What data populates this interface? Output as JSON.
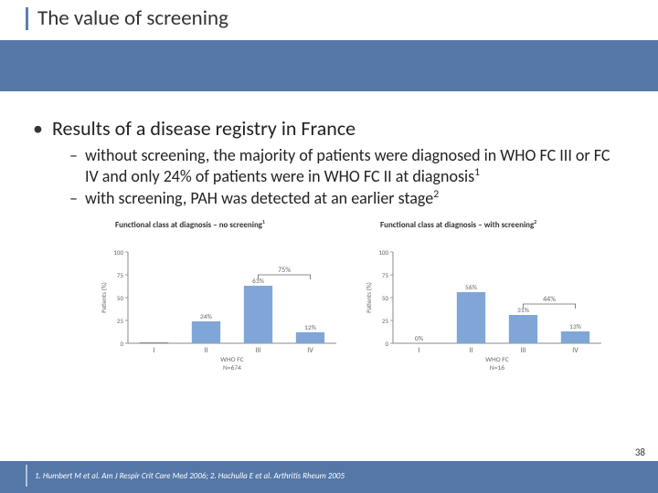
{
  "title": "The value of screening",
  "bullet_main": "Results of a disease registry in France",
  "sub1_text": "without screening, the majority of patients were diagnosed in WHO FC III or FC IV and only 24% of patients were in WHO FC II at diagnosis",
  "sub1_sup": "1",
  "sub2_text": "with screening, PAH was detected at an earlier stage",
  "sub2_sup": "2",
  "chart1": {
    "title": "Functional class at diagnosis – no screening",
    "title_sup": "1",
    "ylabel": "Patients (%)",
    "xlabel_top": "WHO FC",
    "xlabel_bottom": "N=674",
    "categories": [
      "I",
      "II",
      "III",
      "IV"
    ],
    "values": [
      1,
      24,
      63,
      12
    ],
    "show_pct": [
      false,
      true,
      true,
      true
    ],
    "bracket": {
      "from": 2,
      "to": 3,
      "label": "75%"
    },
    "ylim": [
      0,
      100
    ],
    "ytick_step": 25,
    "bar_colors": [
      "#8a8a8a",
      "#7fa6d6",
      "#7fa6d6",
      "#7fa6d6"
    ],
    "axis_color": "#888",
    "text_color": "#666",
    "bar_width": 0.55
  },
  "chart2": {
    "title": "Functional class at diagnosis – with screening",
    "title_sup": "2",
    "ylabel": "Patients (%)",
    "xlabel_top": "WHO FC",
    "xlabel_bottom": "N=16",
    "categories": [
      "I",
      "II",
      "III",
      "IV"
    ],
    "values": [
      0,
      56,
      31,
      13
    ],
    "show_pct": [
      true,
      true,
      true,
      true
    ],
    "bracket": {
      "from": 2,
      "to": 3,
      "label": "44%"
    },
    "ylim": [
      0,
      100
    ],
    "ytick_step": 25,
    "bar_colors": [
      "#8a8a8a",
      "#7fa6d6",
      "#7fa6d6",
      "#7fa6d6"
    ],
    "axis_color": "#888",
    "text_color": "#666",
    "bar_width": 0.55
  },
  "footnote": "1. Humbert M et al. Am J Respir Crit Care Med 2006; 2. Hachulla E et al. Arthritis Rheum 2005",
  "page_number": "38",
  "colors": {
    "band": "#5477a8",
    "title_border": "#5a80b0"
  }
}
